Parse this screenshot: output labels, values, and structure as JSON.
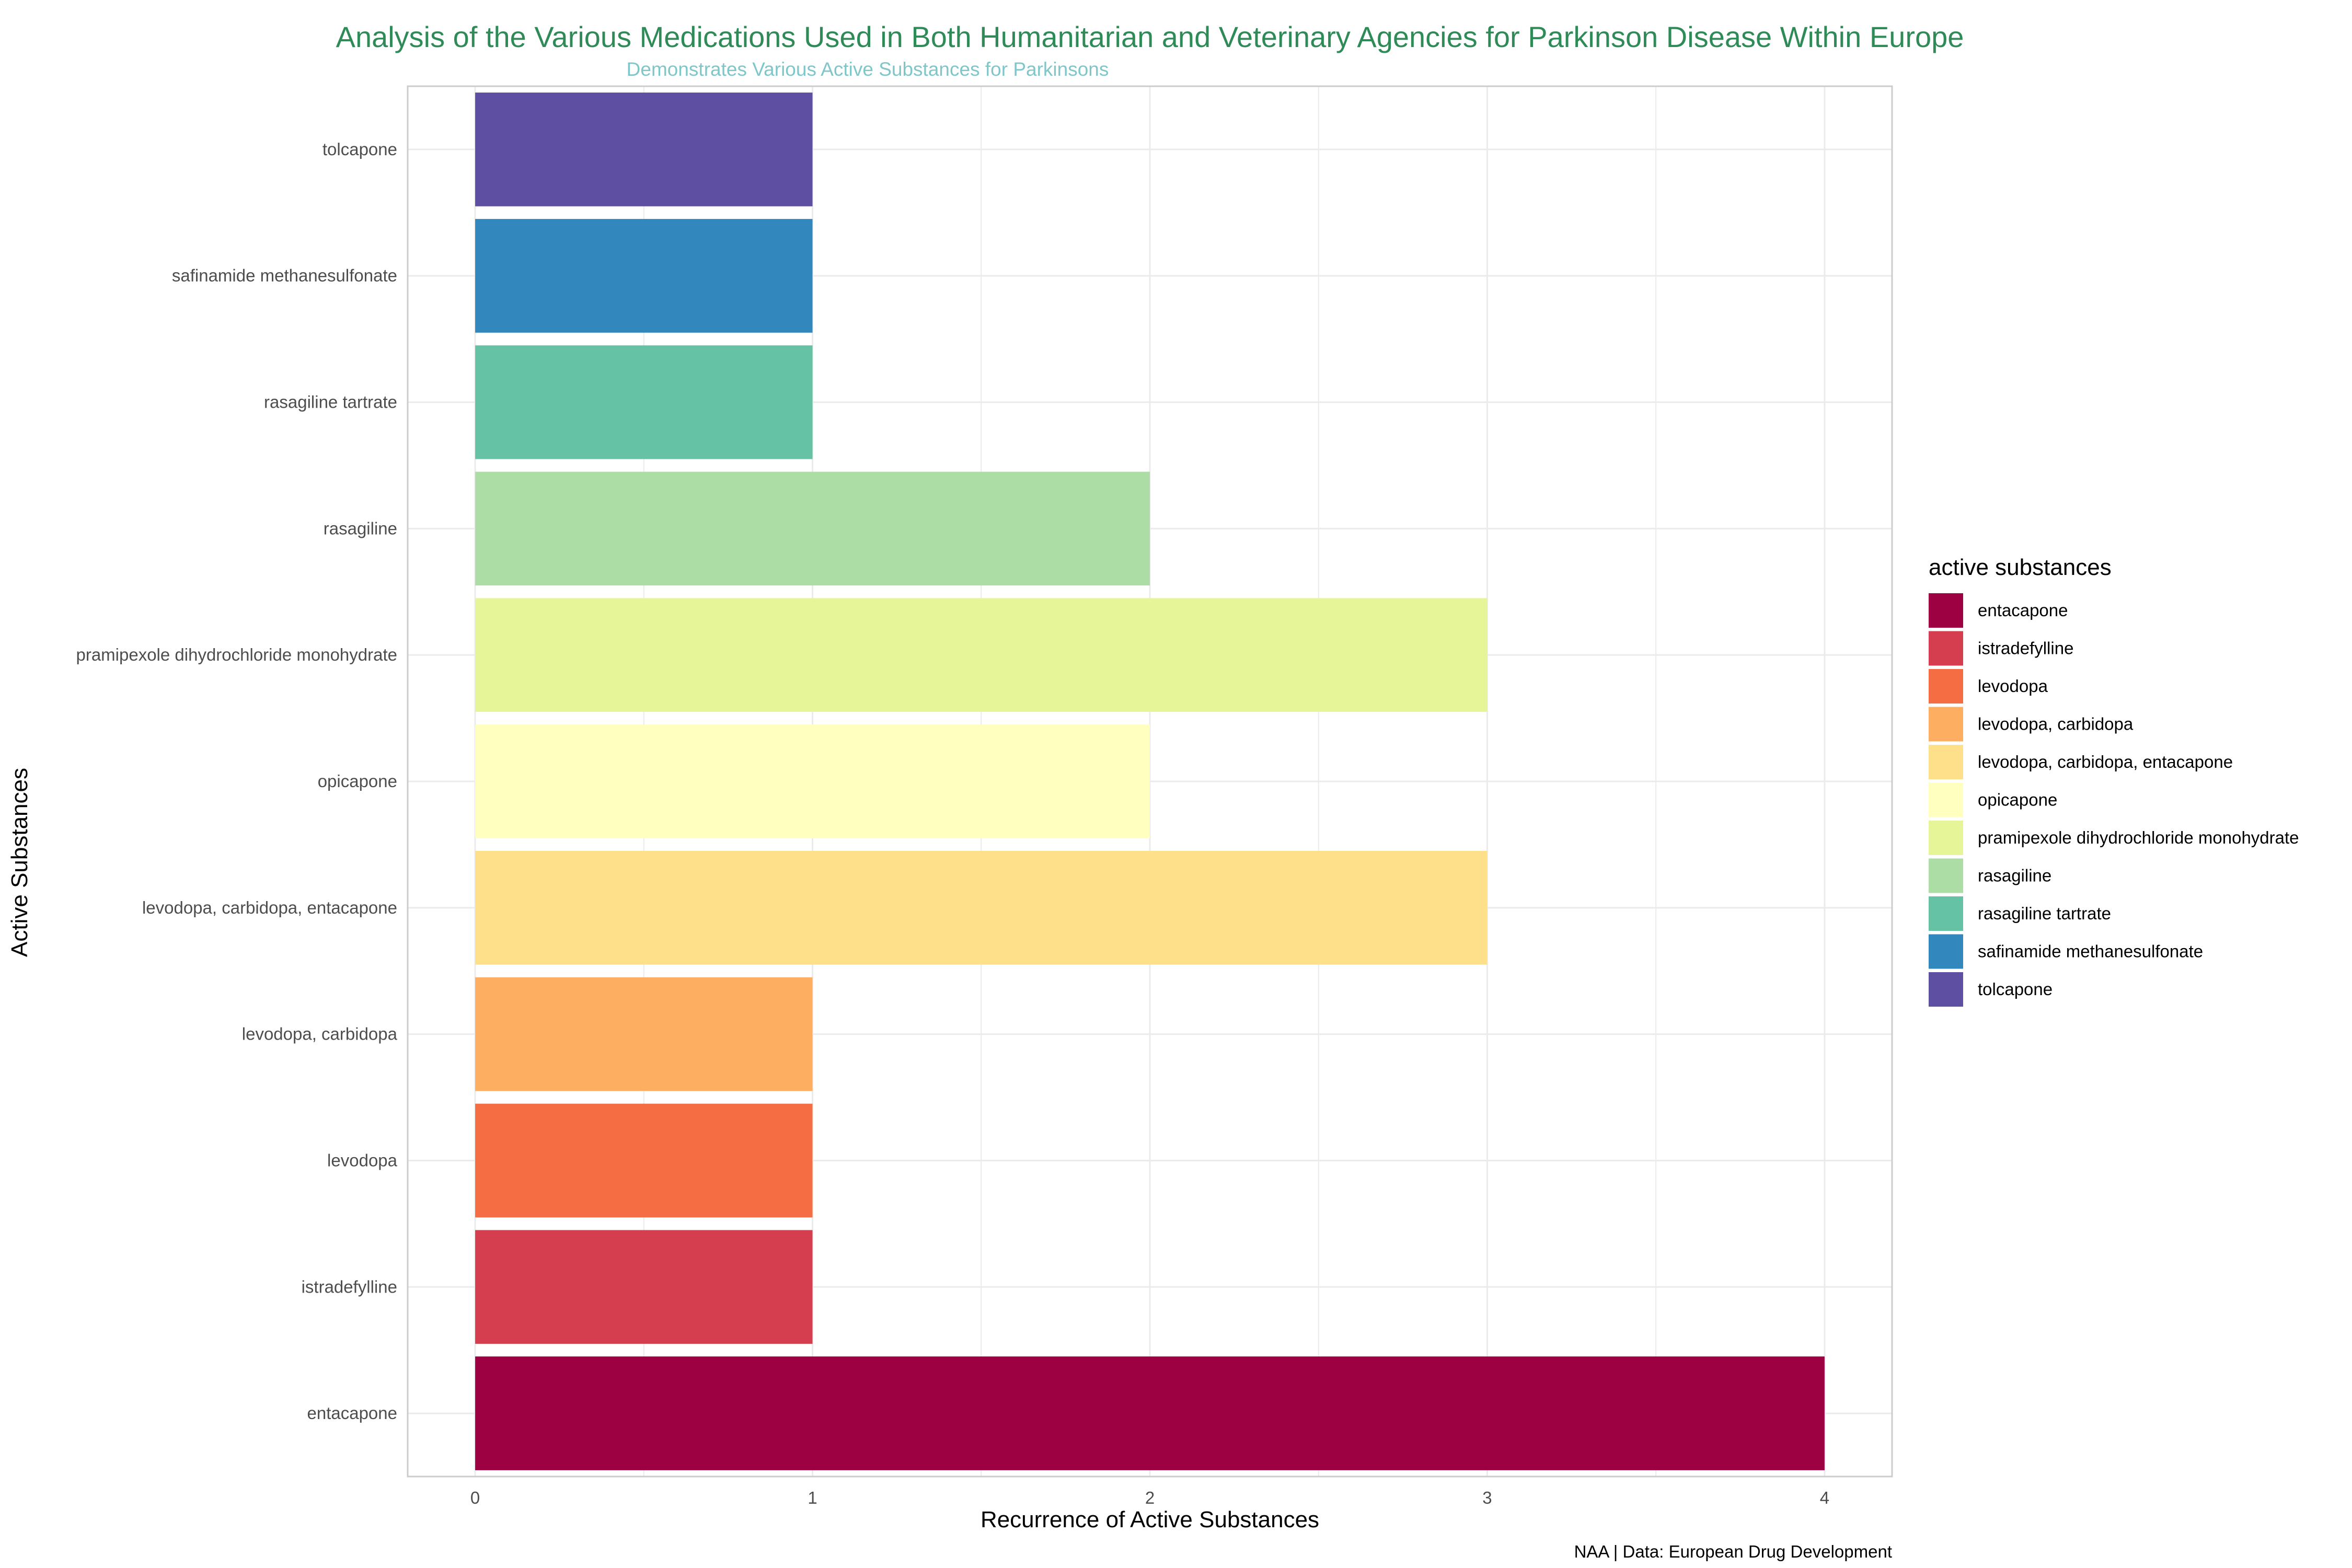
{
  "colors": {
    "title": "#2E8B57",
    "subtitle": "#7FC6C9",
    "grid": "#EBEBEB",
    "panel_border": "#CCCCCC"
  },
  "chart_data": {
    "type": "bar",
    "orientation": "horizontal",
    "title": "Analysis of the Various Medications Used in Both Humanitarian and Veterinary Agencies for Parkinson Disease Within Europe",
    "subtitle": "Demonstrates Various Active Substances for Parkinsons",
    "xlabel": "Recurrence of Active Substances",
    "ylabel": "Active Substances",
    "caption": "NAA | Data: European Drug Development",
    "legend_title": "active substances",
    "legend_position": "right",
    "grid": true,
    "xlim": [
      -0.2,
      4.2
    ],
    "x_ticks": [
      0,
      1,
      2,
      3,
      4
    ],
    "categories": [
      "entacapone",
      "istradefylline",
      "levodopa",
      "levodopa, carbidopa",
      "levodopa, carbidopa, entacapone",
      "opicapone",
      "pramipexole dihydrochloride monohydrate",
      "rasagiline",
      "rasagiline tartrate",
      "safinamide methanesulfonate",
      "tolcapone"
    ],
    "values": [
      4,
      1,
      1,
      1,
      3,
      2,
      3,
      2,
      1,
      1,
      1
    ],
    "bar_colors": [
      "#9E0142",
      "#D53E4F",
      "#F46D43",
      "#FDAE61",
      "#FEE08B",
      "#FFFFBF",
      "#E6F598",
      "#ABDDA4",
      "#66C2A5",
      "#3288BD",
      "#5E4FA2"
    ]
  }
}
